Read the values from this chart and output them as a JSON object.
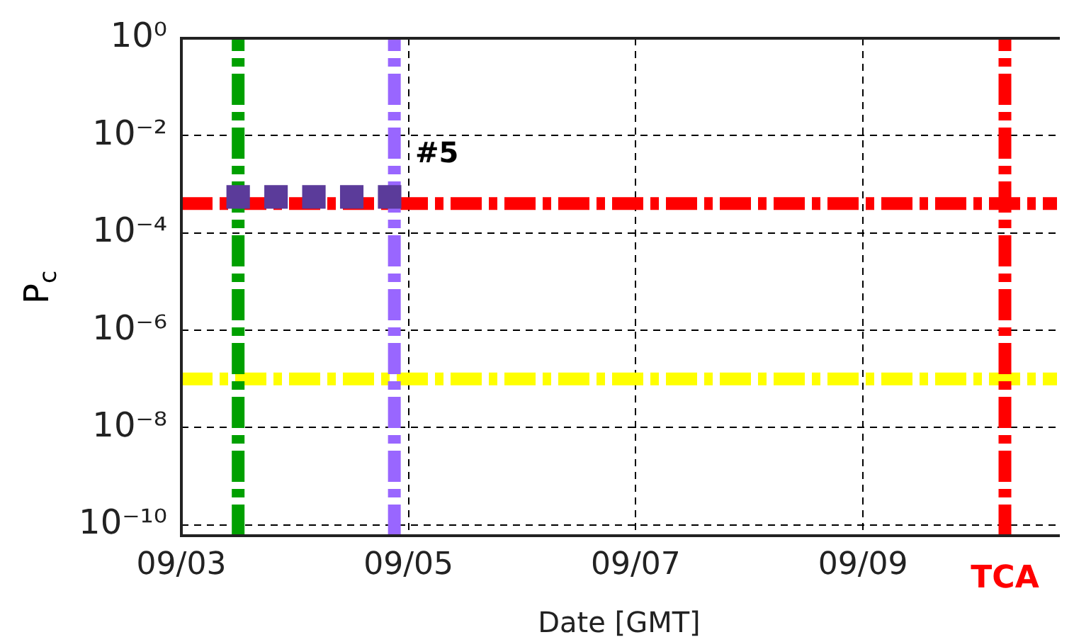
{
  "chart_data": {
    "type": "scatter",
    "ylabel": "P$_{c}$",
    "xlabel": "Date [GMT]",
    "log": "y",
    "grid": true,
    "legend": false,
    "marker": "square",
    "x": [
      "--09-03T12:00",
      "--09-03T20:00",
      "--09-04T04:00",
      "--09-04T12:00",
      "--09-04T20:00"
    ],
    "series": [
      {
        "color": "#5b3b9a",
        "values": [
          0.00055,
          0.00055,
          0.00055,
          0.00055,
          0.00055
        ]
      }
    ],
    "xlim": [
      "--09-03",
      "--09-10T17:00"
    ],
    "xticks": [
      {
        "value": "--09-03",
        "label": "09/03"
      },
      {
        "value": "--09-05",
        "label": "09/05"
      },
      {
        "value": "--09-07",
        "label": "09/07"
      },
      {
        "value": "--09-09",
        "label": "09/09"
      }
    ],
    "ylim": [
      6e-11,
      1
    ],
    "yticks": [
      {
        "value": 1,
        "label": "10⁰"
      },
      {
        "value": 0.01,
        "label": "10⁻²"
      },
      {
        "value": 0.0001,
        "label": "10⁻⁴"
      },
      {
        "value": 1e-06,
        "label": "10⁻⁶"
      },
      {
        "value": 1e-08,
        "label": "10⁻⁸"
      },
      {
        "value": 1e-10,
        "label": "10⁻¹⁰"
      }
    ],
    "ref_lines": [
      {
        "axis": "y",
        "value": 0.0004,
        "color": "#ff0000",
        "line_style": "dashed"
      },
      {
        "axis": "y",
        "value": 1e-07,
        "color": "#ffff00",
        "line_style": "dashed"
      },
      {
        "axis": "x",
        "value": "--09-03T12:00",
        "color": "#00a000",
        "line_style": "dashed"
      },
      {
        "axis": "x",
        "value": "--09-04T21:00",
        "color": "#9966ff",
        "line_style": "dashed"
      },
      {
        "axis": "x",
        "value": "--09-10T06:00",
        "color": "#ff0000",
        "line_style": "dashed",
        "label": "TCA"
      }
    ],
    "annotations": [
      {
        "text": "#5",
        "x": "--09-04T20:00",
        "y": 0.004
      }
    ]
  }
}
